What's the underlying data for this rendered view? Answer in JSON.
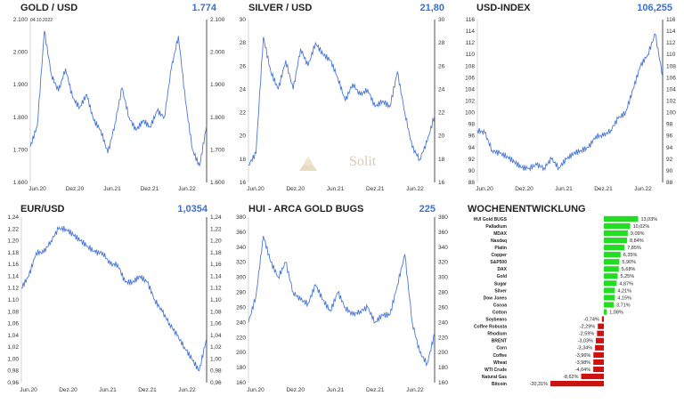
{
  "chart_data": [
    {
      "type": "line",
      "title": "GOLD / USD",
      "current_value": "1.774",
      "annotation": "04.10.2022",
      "x_ticks": [
        "Jun.20",
        "Dez.20",
        "Jun.21",
        "Dez.21",
        "Jun.22"
      ],
      "y_ticks": [
        "1.600",
        "1.700",
        "1.800",
        "1.900",
        "2.000",
        "2.100"
      ],
      "ylim": [
        1600,
        2100
      ],
      "series_color": "#4a78d8",
      "x": [
        0,
        5,
        10,
        15,
        20,
        25,
        30,
        35,
        40,
        45,
        50,
        55,
        60,
        65,
        70,
        75,
        80,
        85,
        90,
        95,
        100,
        105,
        110,
        115,
        120,
        125
      ],
      "y": [
        1710,
        1775,
        2065,
        1930,
        1880,
        1950,
        1860,
        1830,
        1870,
        1790,
        1760,
        1690,
        1780,
        1890,
        1800,
        1760,
        1790,
        1770,
        1820,
        1800,
        1950,
        2050,
        1850,
        1700,
        1650,
        1774
      ]
    },
    {
      "type": "line",
      "title": "SILVER / USD",
      "current_value": "21,80",
      "x_ticks": [
        "Jun.20",
        "Dez.20",
        "Jun.21",
        "Dez.21",
        "Jun.22"
      ],
      "y_ticks": [
        "16",
        "18",
        "20",
        "22",
        "24",
        "26",
        "28",
        "30"
      ],
      "ylim": [
        16,
        30
      ],
      "series_color": "#4a78d8",
      "x": [
        0,
        5,
        10,
        15,
        20,
        25,
        30,
        35,
        40,
        45,
        50,
        55,
        60,
        65,
        70,
        75,
        80,
        85,
        90,
        95,
        100,
        105,
        110,
        115,
        120,
        125
      ],
      "y": [
        17.5,
        18.5,
        28.5,
        25.5,
        24,
        26.5,
        24,
        27.5,
        26,
        28,
        27,
        26.5,
        25,
        23,
        24.5,
        23.5,
        24,
        22.5,
        23,
        22.5,
        25.5,
        22,
        19,
        18,
        19.5,
        21.8
      ]
    },
    {
      "type": "line",
      "title": "USD-INDEX",
      "current_value": "106,255",
      "x_ticks": [
        "Jun.20",
        "Dez.20",
        "Jun.21",
        "Dez.21",
        "Jun.22"
      ],
      "y_ticks": [
        "88",
        "90",
        "92",
        "94",
        "96",
        "98",
        "100",
        "102",
        "104",
        "106",
        "108",
        "110",
        "112",
        "114",
        "116"
      ],
      "ylim": [
        88,
        116
      ],
      "series_color": "#4a78d8",
      "x": [
        0,
        5,
        10,
        15,
        20,
        25,
        30,
        35,
        40,
        45,
        50,
        55,
        60,
        65,
        70,
        75,
        80,
        85,
        90,
        95,
        100,
        105,
        110,
        115,
        120,
        125
      ],
      "y": [
        97,
        96.5,
        93.5,
        93,
        92.5,
        91.5,
        90.5,
        90.5,
        91,
        90.5,
        92,
        90.5,
        92,
        93,
        93.5,
        94,
        96,
        96,
        97,
        99,
        100,
        104,
        108,
        110,
        113.5,
        106.3
      ]
    },
    {
      "type": "line",
      "title": "EUR/USD",
      "current_value": "1,0354",
      "x_ticks": [
        "Jun.20",
        "Dez.20",
        "Jun.21",
        "Dez.21",
        "Jun.22"
      ],
      "y_ticks": [
        "0,96",
        "0,98",
        "1,00",
        "1,02",
        "1,04",
        "1,06",
        "1,08",
        "1,10",
        "1,12",
        "1,14",
        "1,16",
        "1,18",
        "1,20",
        "1,22",
        "1,24"
      ],
      "y_ticks_right": [
        "0,94",
        "0,96",
        "0,98",
        "1,00",
        "1,02",
        "1,04",
        "1,06",
        "1,08",
        "1,10",
        "1,12",
        "1,14",
        "1,16",
        "1,18",
        "1,20",
        "1,22",
        "1,24"
      ],
      "ylim": [
        0.96,
        1.24
      ],
      "series_color": "#4a78d8",
      "x": [
        0,
        5,
        10,
        15,
        20,
        25,
        30,
        35,
        40,
        45,
        50,
        55,
        60,
        65,
        70,
        75,
        80,
        85,
        90,
        95,
        100,
        105,
        110,
        115,
        120,
        125
      ],
      "y": [
        1.12,
        1.14,
        1.18,
        1.18,
        1.2,
        1.22,
        1.22,
        1.21,
        1.2,
        1.19,
        1.18,
        1.18,
        1.16,
        1.16,
        1.13,
        1.13,
        1.14,
        1.13,
        1.1,
        1.08,
        1.06,
        1.04,
        1.02,
        1.0,
        0.98,
        1.0354
      ]
    },
    {
      "type": "line",
      "title": "HUI - ARCA GOLD BUGS",
      "current_value": "225",
      "x_ticks": [
        "Jun.20",
        "Dez.20",
        "Jun.21",
        "Dez.21",
        "Jun.22"
      ],
      "y_ticks": [
        "160",
        "180",
        "200",
        "220",
        "240",
        "260",
        "280",
        "300",
        "320",
        "340",
        "360",
        "380"
      ],
      "ylim": [
        160,
        380
      ],
      "series_color": "#4a78d8",
      "x": [
        0,
        5,
        10,
        15,
        20,
        25,
        30,
        35,
        40,
        45,
        50,
        55,
        60,
        65,
        70,
        75,
        80,
        85,
        90,
        95,
        100,
        105,
        110,
        115,
        120,
        125
      ],
      "y": [
        240,
        275,
        355,
        320,
        300,
        320,
        280,
        270,
        265,
        290,
        270,
        255,
        280,
        260,
        250,
        255,
        260,
        240,
        250,
        250,
        290,
        330,
        240,
        200,
        185,
        225
      ]
    },
    {
      "type": "bar",
      "title": "WOCHENENTWICKLUNG",
      "orientation": "horizontal",
      "positive_color": "#22dd22",
      "negative_color": "#cc1111",
      "categories": [
        "HUI Gold BUGS",
        "Palladium",
        "MDAX",
        "Nasdaq",
        "Platin",
        "Copper",
        "S&P500",
        "DAX",
        "Gold",
        "Sugar",
        "Silver",
        "Dow Jones",
        "Cocoa",
        "Cotton",
        "Soybeans",
        "Coffee Robusta",
        "Rhodium",
        "BRENT",
        "Corn",
        "Coffee",
        "Wheat",
        "WTI Crude",
        "Natural Gas",
        "Bitcoin"
      ],
      "values": [
        13.03,
        10.02,
        9.09,
        8.84,
        7.85,
        6.35,
        5.9,
        5.68,
        5.25,
        4.87,
        4.21,
        4.15,
        3.71,
        1.08,
        -0.74,
        -2.29,
        -2.59,
        -3.03,
        -3.34,
        -3.96,
        -3.98,
        -4.04,
        -8.62,
        -20.31
      ],
      "value_labels": [
        "13,03%",
        "10,02%",
        "9,09%",
        "8,84%",
        "7,85%",
        "6,35%",
        "5,90%",
        "5,68%",
        "5,25%",
        "4,87%",
        "4,21%",
        "4,15%",
        "3,71%",
        "1,08%",
        "-0,74%",
        "-2,29%",
        "-2,59%",
        "-3,03%",
        "-3,34%",
        "-3,96%",
        "-3,98%",
        "-4,04%",
        "-8,62%",
        "-20,31%"
      ]
    }
  ],
  "watermark": {
    "text": "Solit"
  }
}
